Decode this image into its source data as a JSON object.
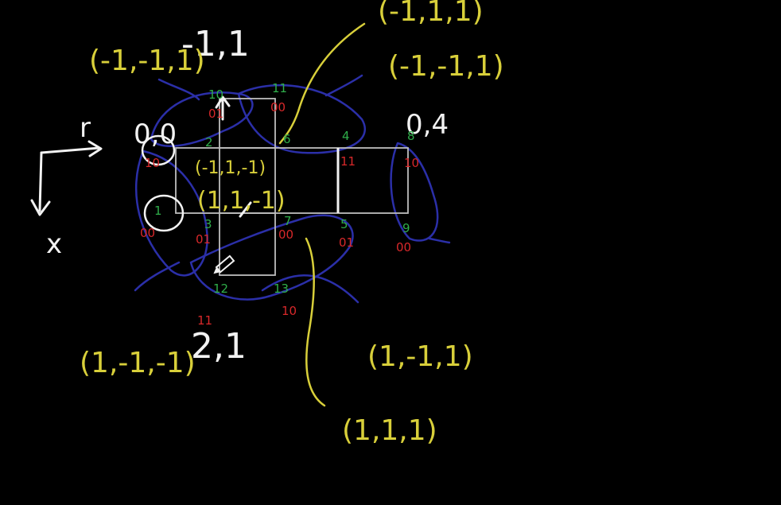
{
  "colors": {
    "background": "#000000",
    "chalk_white": "#f2f2f2",
    "grid_lines": "#bdbdbd",
    "yellow_ink": "#d8cf3a",
    "blue_ink": "#2b2fa8",
    "green_ink": "#2fae4a",
    "red_ink": "#d8282a"
  },
  "axes": {
    "horizontal_label": "r",
    "vertical_label": "x"
  },
  "coordinates": {
    "top_left": "0,0",
    "top_right": "0,4",
    "upper_marked": "-1,1",
    "lower_marked": "2,1"
  },
  "vectors": {
    "upper_left": "(-1,-1,1)",
    "top_right_1": "(-1,1,1)",
    "top_right_2": "(-1,-1,1)",
    "center_1": "(-1,1,-1)",
    "center_2": "(1,1,-1)",
    "lower_left": "(1,-1,-1)",
    "lower_right_1": "(1,-1,1)",
    "lower_right_2": "(1,1,1)"
  },
  "cell_indices": [
    "10",
    "11",
    "2",
    "6",
    "4",
    "8",
    "1",
    "3",
    "7",
    "5",
    "9",
    "12",
    "13"
  ],
  "cell_codes": [
    "01",
    "00",
    "10",
    "11",
    "10",
    "00",
    "01",
    "00",
    "01",
    "00",
    "11",
    "10"
  ]
}
